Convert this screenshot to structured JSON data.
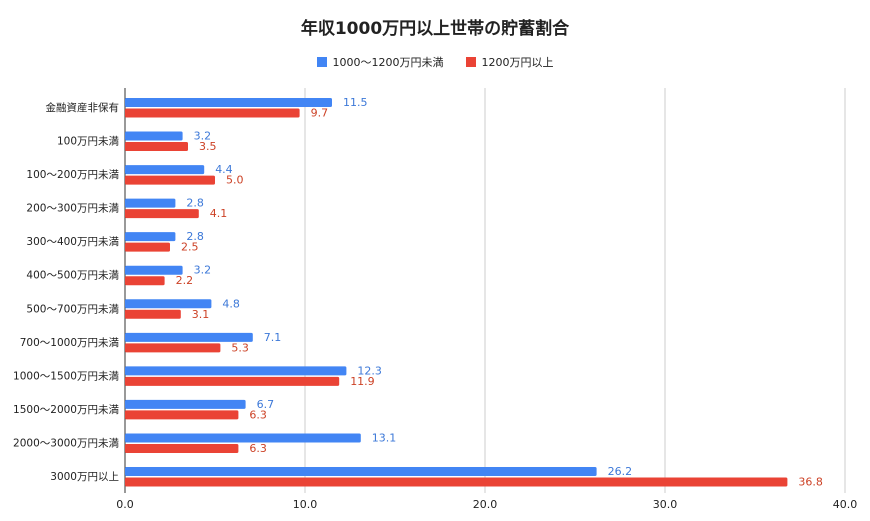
{
  "chart_data": {
    "type": "bar",
    "orientation": "horizontal",
    "title": "年収1000万円以上世帯の貯蓄割合",
    "categories": [
      "金融資産非保有",
      "100万円未満",
      "100〜200万円未満",
      "200〜300万円未満",
      "300〜400万円未満",
      "400〜500万円未満",
      "500〜700万円未満",
      "700〜1000万円未満",
      "1000〜1500万円未満",
      "1500〜2000万円未満",
      "2000〜3000万円未満",
      "3000万円以上"
    ],
    "series": [
      {
        "name": "1000〜1200万円未満",
        "color": "#4285f4",
        "label_color": "#3c78d8",
        "values": [
          11.5,
          3.2,
          4.4,
          2.8,
          2.8,
          3.2,
          4.8,
          7.1,
          12.3,
          6.7,
          13.1,
          26.2
        ]
      },
      {
        "name": "1200万円以上",
        "color": "#ea4335",
        "label_color": "#cc4125",
        "values": [
          9.7,
          3.5,
          5.0,
          4.1,
          2.5,
          2.2,
          3.1,
          5.3,
          11.9,
          6.3,
          6.3,
          36.8
        ]
      }
    ],
    "xlim": [
      0,
      40
    ],
    "xticks": [
      "0.0",
      "10.0",
      "20.0",
      "30.0",
      "40.0"
    ],
    "grid": true,
    "legend": "top"
  }
}
